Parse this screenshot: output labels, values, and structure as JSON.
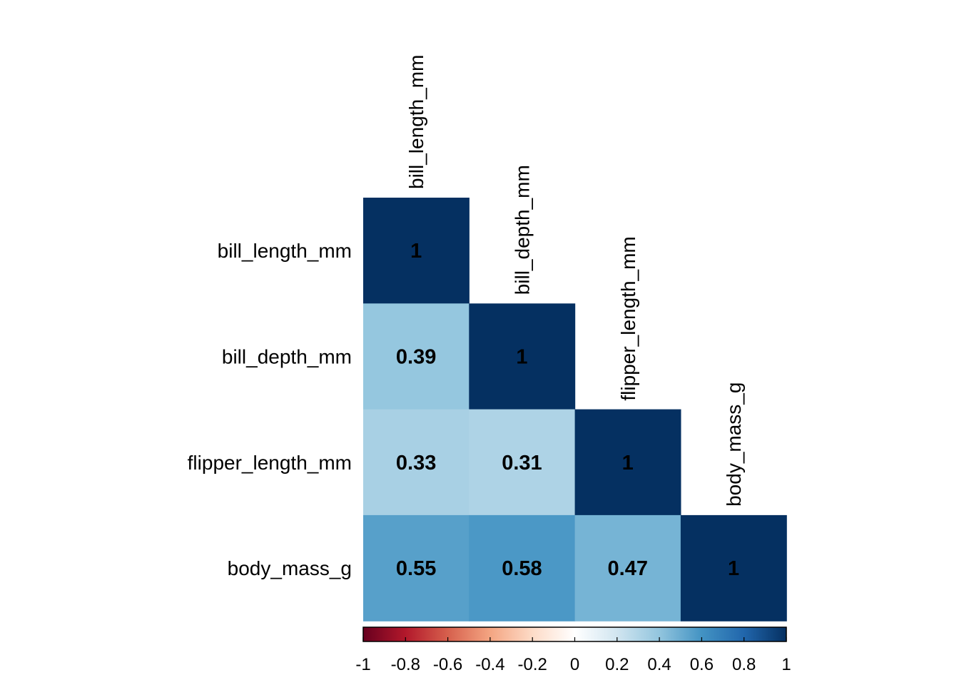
{
  "chart_data": {
    "type": "heatmap",
    "layout": "lower-triangle",
    "variables": [
      "bill_length_mm",
      "bill_depth_mm",
      "flipper_length_mm",
      "body_mass_g"
    ],
    "cells": [
      {
        "row": 0,
        "col": 0,
        "value": 1,
        "label": "1"
      },
      {
        "row": 1,
        "col": 0,
        "value": 0.39,
        "label": "0.39"
      },
      {
        "row": 1,
        "col": 1,
        "value": 1,
        "label": "1"
      },
      {
        "row": 2,
        "col": 0,
        "value": 0.33,
        "label": "0.33"
      },
      {
        "row": 2,
        "col": 1,
        "value": 0.31,
        "label": "0.31"
      },
      {
        "row": 2,
        "col": 2,
        "value": 1,
        "label": "1"
      },
      {
        "row": 3,
        "col": 0,
        "value": 0.55,
        "label": "0.55"
      },
      {
        "row": 3,
        "col": 1,
        "value": 0.58,
        "label": "0.58"
      },
      {
        "row": 3,
        "col": 2,
        "value": 0.47,
        "label": "0.47"
      },
      {
        "row": 3,
        "col": 3,
        "value": 1,
        "label": "1"
      }
    ],
    "colorbar": {
      "range": [
        -1,
        1
      ],
      "orientation": "horizontal",
      "ticks": [
        -1,
        -0.8,
        -0.6,
        -0.4,
        -0.2,
        0,
        0.2,
        0.4,
        0.6,
        0.8,
        1
      ],
      "tick_labels": [
        "-1",
        "-0.8",
        "-0.6",
        "-0.4",
        "-0.2",
        "0",
        "0.2",
        "0.4",
        "0.6",
        "0.8",
        "1"
      ],
      "palette": [
        "#67001F",
        "#B2182B",
        "#D6604D",
        "#F4A582",
        "#FDDBC7",
        "#FFFFFF",
        "#D1E5F0",
        "#92C5DE",
        "#4393C3",
        "#2166AC",
        "#053061"
      ]
    }
  }
}
